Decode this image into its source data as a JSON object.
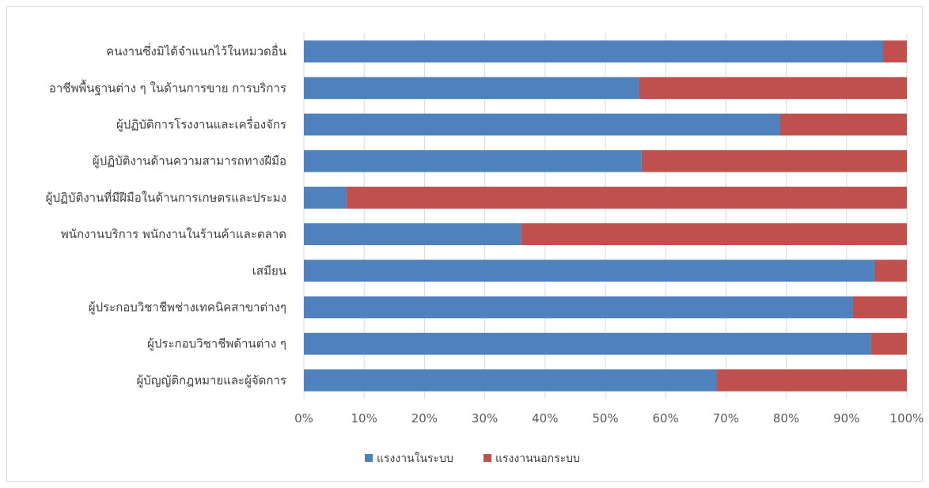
{
  "chart_data": {
    "type": "bar",
    "orientation": "horizontal",
    "stacked": "percent",
    "categories": [
      "คนงานซึ่งมิได้จำแนกไว้ในหมวดอื่น",
      "อาชีพพื้นฐานต่าง ๆ ในด้านการขาย การบริการ",
      "ผู้ปฏิบัติการโรงงานและเครื่องจักร",
      "ผู้ปฏิบัติงานด้านความสามารถทางฝีมือ",
      "ผู้ปฏิบัติงานที่มีฝีมือในด้านการเกษตรและประมง",
      "พนักงานบริการ พนักงานในร้านค้าและตลาด",
      "เสมียน",
      "ผู้ประกอบวิชาชีพช่างเทคนิคสาขาต่างๆ",
      "ผู้ประกอบวิชาชีพด้านต่าง ๆ",
      "ผู้บัญญัติกฎหมายและผู้จัดการ"
    ],
    "series": [
      {
        "name": "แรงงานในระบบ",
        "color": "#4f81bd",
        "values": [
          96,
          55.5,
          79,
          56,
          7,
          36,
          94.6,
          91,
          94,
          68.5
        ]
      },
      {
        "name": "แรงงานนอกระบบ",
        "color": "#c0504d",
        "values": [
          4,
          44.5,
          21,
          44,
          93,
          64,
          5.4,
          9,
          6,
          31.5
        ]
      }
    ],
    "x_ticks": [
      "0%",
      "10%",
      "20%",
      "30%",
      "40%",
      "50%",
      "60%",
      "70%",
      "80%",
      "90%",
      "100%"
    ],
    "xlim": [
      0,
      100
    ],
    "grid": true,
    "legend_position": "bottom"
  }
}
